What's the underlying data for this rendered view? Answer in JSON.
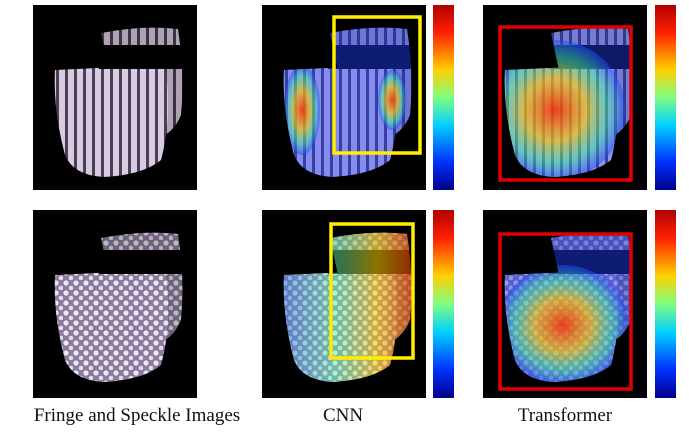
{
  "captions": [
    "Fringe and Speckle Images",
    "CNN",
    "Transformer"
  ]
}
